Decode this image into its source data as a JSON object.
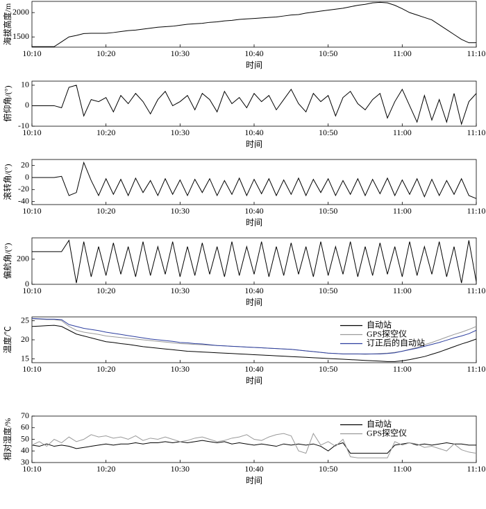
{
  "chart_data": [
    {
      "type": "line",
      "ylabel": "海拔高度/m",
      "xlabel": "时间",
      "x": [
        "10:10",
        "10:11",
        "10:12",
        "10:13",
        "10:14",
        "10:15",
        "10:16",
        "10:17",
        "10:18",
        "10:19",
        "10:20",
        "10:21",
        "10:22",
        "10:23",
        "10:24",
        "10:25",
        "10:26",
        "10:27",
        "10:28",
        "10:29",
        "10:30",
        "10:31",
        "10:32",
        "10:33",
        "10:34",
        "10:35",
        "10:36",
        "10:37",
        "10:38",
        "10:39",
        "10:40",
        "10:41",
        "10:42",
        "10:43",
        "10:44",
        "10:45",
        "10:46",
        "10:47",
        "10:48",
        "10:49",
        "10:50",
        "10:51",
        "10:52",
        "10:53",
        "10:54",
        "10:55",
        "10:56",
        "10:57",
        "10:58",
        "10:59",
        "11:00",
        "11:01",
        "11:02",
        "11:03",
        "11:04",
        "11:05",
        "11:06",
        "11:07",
        "11:08",
        "11:09",
        "11:10"
      ],
      "values": [
        1300,
        1300,
        1300,
        1300,
        1400,
        1500,
        1530,
        1570,
        1575,
        1575,
        1575,
        1590,
        1610,
        1630,
        1640,
        1660,
        1680,
        1700,
        1710,
        1720,
        1740,
        1760,
        1770,
        1780,
        1800,
        1810,
        1830,
        1840,
        1860,
        1870,
        1880,
        1890,
        1900,
        1910,
        1930,
        1950,
        1960,
        1990,
        2010,
        2030,
        2050,
        2070,
        2090,
        2120,
        2150,
        2170,
        2200,
        2210,
        2200,
        2150,
        2080,
        2000,
        1950,
        1900,
        1850,
        1750,
        1650,
        1550,
        1450,
        1380,
        1380
      ],
      "color": "#000000",
      "xlim": [
        "10:10",
        "11:10"
      ],
      "xticks": [
        "10:10",
        "10:20",
        "10:30",
        "10:40",
        "10:50",
        "11:00",
        "11:10"
      ],
      "ylim": [
        1290,
        2230
      ],
      "yticks": [
        1500,
        2000
      ]
    },
    {
      "type": "line",
      "ylabel": "俯仰角/(°)",
      "xlabel": "时间",
      "x": [
        "10:10",
        "10:11",
        "10:12",
        "10:13",
        "10:14",
        "10:15",
        "10:16",
        "10:17",
        "10:18",
        "10:19",
        "10:20",
        "10:21",
        "10:22",
        "10:23",
        "10:24",
        "10:25",
        "10:26",
        "10:27",
        "10:28",
        "10:29",
        "10:30",
        "10:31",
        "10:32",
        "10:33",
        "10:34",
        "10:35",
        "10:36",
        "10:37",
        "10:38",
        "10:39",
        "10:40",
        "10:41",
        "10:42",
        "10:43",
        "10:44",
        "10:45",
        "10:46",
        "10:47",
        "10:48",
        "10:49",
        "10:50",
        "10:51",
        "10:52",
        "10:53",
        "10:54",
        "10:55",
        "10:56",
        "10:57",
        "10:58",
        "10:59",
        "11:00",
        "11:01",
        "11:02",
        "11:03",
        "11:04",
        "11:05",
        "11:06",
        "11:07",
        "11:08",
        "11:09",
        "11:10"
      ],
      "values": [
        0,
        0,
        0,
        0,
        -1,
        9,
        10,
        -5,
        3,
        2,
        4,
        -3,
        5,
        1,
        6,
        2,
        -4,
        3,
        7,
        0,
        2,
        5,
        -2,
        6,
        3,
        -3,
        7,
        1,
        4,
        -1,
        6,
        2,
        5,
        -2,
        3,
        8,
        1,
        -3,
        6,
        2,
        5,
        -5,
        4,
        7,
        1,
        -2,
        3,
        6,
        -6,
        2,
        8,
        0,
        -8,
        5,
        -7,
        3,
        -8,
        6,
        -9,
        2,
        6
      ],
      "color": "#000000",
      "xlim": [
        "10:10",
        "11:10"
      ],
      "xticks": [
        "10:10",
        "10:20",
        "10:30",
        "10:40",
        "10:50",
        "11:00",
        "11:10"
      ],
      "ylim": [
        -10,
        12
      ],
      "yticks": [
        -10,
        0,
        10
      ]
    },
    {
      "type": "line",
      "ylabel": "滚转角/(°)",
      "xlabel": "时间",
      "x": [
        "10:10",
        "10:11",
        "10:12",
        "10:13",
        "10:14",
        "10:15",
        "10:16",
        "10:17",
        "10:18",
        "10:19",
        "10:20",
        "10:21",
        "10:22",
        "10:23",
        "10:24",
        "10:25",
        "10:26",
        "10:27",
        "10:28",
        "10:29",
        "10:30",
        "10:31",
        "10:32",
        "10:33",
        "10:34",
        "10:35",
        "10:36",
        "10:37",
        "10:38",
        "10:39",
        "10:40",
        "10:41",
        "10:42",
        "10:43",
        "10:44",
        "10:45",
        "10:46",
        "10:47",
        "10:48",
        "10:49",
        "10:50",
        "10:51",
        "10:52",
        "10:53",
        "10:54",
        "10:55",
        "10:56",
        "10:57",
        "10:58",
        "10:59",
        "11:00",
        "11:01",
        "11:02",
        "11:03",
        "11:04",
        "11:05",
        "11:06",
        "11:07",
        "11:08",
        "11:09",
        "11:10"
      ],
      "values": [
        0,
        0,
        0,
        0,
        2,
        -30,
        -25,
        25,
        -5,
        -30,
        -2,
        -28,
        -3,
        -30,
        -1,
        -25,
        -5,
        -30,
        -2,
        -28,
        -4,
        -30,
        -3,
        -25,
        -2,
        -30,
        -5,
        -28,
        -1,
        -30,
        -3,
        -27,
        -2,
        -30,
        -4,
        -28,
        -1,
        -30,
        -3,
        -25,
        -2,
        -30,
        -5,
        -28,
        -2,
        -30,
        -3,
        -27,
        -1,
        -30,
        -4,
        -28,
        -2,
        -32,
        -3,
        -30,
        -5,
        -28,
        -2,
        -30,
        -35
      ],
      "color": "#000000",
      "xlim": [
        "10:10",
        "11:10"
      ],
      "xticks": [
        "10:10",
        "10:20",
        "10:30",
        "10:40",
        "10:50",
        "11:00",
        "11:10"
      ],
      "ylim": [
        -45,
        30
      ],
      "yticks": [
        -40,
        -20,
        0,
        20
      ]
    },
    {
      "type": "line",
      "ylabel": "偏航角/(°)",
      "xlabel": "时间",
      "x": [
        "10:10",
        "10:11",
        "10:12",
        "10:13",
        "10:14",
        "10:15",
        "10:16",
        "10:17",
        "10:18",
        "10:19",
        "10:20",
        "10:21",
        "10:22",
        "10:23",
        "10:24",
        "10:25",
        "10:26",
        "10:27",
        "10:28",
        "10:29",
        "10:30",
        "10:31",
        "10:32",
        "10:33",
        "10:34",
        "10:35",
        "10:36",
        "10:37",
        "10:38",
        "10:39",
        "10:40",
        "10:41",
        "10:42",
        "10:43",
        "10:44",
        "10:45",
        "10:46",
        "10:47",
        "10:48",
        "10:49",
        "10:50",
        "10:51",
        "10:52",
        "10:53",
        "10:54",
        "10:55",
        "10:56",
        "10:57",
        "10:58",
        "10:59",
        "11:00",
        "11:01",
        "11:02",
        "11:03",
        "11:04",
        "11:05",
        "11:06",
        "11:07",
        "11:08",
        "11:09",
        "11:10"
      ],
      "values": [
        260,
        260,
        260,
        260,
        260,
        350,
        10,
        340,
        60,
        300,
        70,
        330,
        80,
        300,
        60,
        340,
        70,
        300,
        80,
        340,
        60,
        300,
        70,
        330,
        80,
        300,
        60,
        340,
        70,
        300,
        80,
        340,
        60,
        300,
        70,
        330,
        80,
        300,
        60,
        340,
        70,
        300,
        80,
        340,
        60,
        300,
        70,
        330,
        80,
        300,
        60,
        340,
        70,
        300,
        80,
        340,
        60,
        300,
        10,
        350,
        20
      ],
      "color": "#000000",
      "xlim": [
        "10:10",
        "11:10"
      ],
      "xticks": [
        "10:10",
        "10:20",
        "10:30",
        "10:40",
        "10:50",
        "11:00",
        "11:10"
      ],
      "ylim": [
        0,
        370
      ],
      "yticks": [
        0,
        200
      ]
    },
    {
      "type": "line",
      "ylabel": "温度/℃",
      "xlabel": "时间",
      "legend": "upper right",
      "x": [
        "10:10",
        "10:11",
        "10:12",
        "10:13",
        "10:14",
        "10:15",
        "10:16",
        "10:17",
        "10:18",
        "10:19",
        "10:20",
        "10:21",
        "10:22",
        "10:23",
        "10:24",
        "10:25",
        "10:26",
        "10:27",
        "10:28",
        "10:29",
        "10:30",
        "10:31",
        "10:32",
        "10:33",
        "10:34",
        "10:35",
        "10:36",
        "10:37",
        "10:38",
        "10:39",
        "10:40",
        "10:41",
        "10:42",
        "10:43",
        "10:44",
        "10:45",
        "10:46",
        "10:47",
        "10:48",
        "10:49",
        "10:50",
        "10:51",
        "10:52",
        "10:53",
        "10:54",
        "10:55",
        "10:56",
        "10:57",
        "10:58",
        "10:59",
        "11:00",
        "11:01",
        "11:02",
        "11:03",
        "11:04",
        "11:05",
        "11:06",
        "11:07",
        "11:08",
        "11:09",
        "11:10"
      ],
      "series": [
        {
          "name": "自动站",
          "color": "#000000",
          "values": [
            23.5,
            23.6,
            23.7,
            23.8,
            23.5,
            22.5,
            21.5,
            21,
            20.5,
            20,
            19.5,
            19.3,
            19,
            18.8,
            18.5,
            18.2,
            18,
            17.8,
            17.6,
            17.4,
            17.2,
            17,
            16.9,
            16.8,
            16.7,
            16.6,
            16.5,
            16.4,
            16.3,
            16.2,
            16.1,
            16,
            15.9,
            15.8,
            15.7,
            15.6,
            15.5,
            15.4,
            15.3,
            15.2,
            15.1,
            15,
            14.9,
            14.8,
            14.7,
            14.6,
            14.5,
            14.4,
            14.3,
            14.3,
            14.5,
            14.8,
            15.2,
            15.6,
            16.2,
            16.8,
            17.5,
            18.2,
            18.9,
            19.5,
            20.2
          ]
        },
        {
          "name": "GPS探空仪",
          "color": "#999999",
          "values": [
            25.5,
            25.4,
            25.3,
            25.3,
            25,
            23.5,
            22.5,
            22,
            21.7,
            21.4,
            21,
            20.8,
            20.6,
            20.4,
            20.2,
            20,
            19.8,
            19.6,
            19.4,
            19.2,
            19,
            18.9,
            18.8,
            18.7,
            18.6,
            18.5,
            18.4,
            18.3,
            18.2,
            18.1,
            18,
            17.9,
            17.8,
            17.7,
            17.6,
            17.5,
            17.3,
            17.1,
            16.9,
            16.7,
            16.5,
            16.4,
            16.3,
            16.3,
            16.3,
            16.2,
            16.3,
            16.4,
            16.5,
            16.7,
            17,
            17.5,
            18,
            18.7,
            19.3,
            20,
            20.7,
            21.4,
            22,
            22.7,
            23.5
          ]
        },
        {
          "name": "订正后的自动站",
          "color": "#2b3d9e",
          "values": [
            25.6,
            25.5,
            25.4,
            25.4,
            25.3,
            24,
            23.5,
            23,
            22.7,
            22.4,
            22,
            21.7,
            21.4,
            21.1,
            20.8,
            20.5,
            20.2,
            20,
            19.8,
            19.6,
            19.3,
            19.2,
            19,
            18.9,
            18.7,
            18.5,
            18.4,
            18.3,
            18.2,
            18.1,
            18,
            17.9,
            17.8,
            17.7,
            17.6,
            17.5,
            17.3,
            17.1,
            16.9,
            16.7,
            16.5,
            16.4,
            16.3,
            16.3,
            16.3,
            16.3,
            16.3,
            16.3,
            16.4,
            16.6,
            17,
            17.4,
            17.8,
            18.3,
            18.8,
            19.3,
            19.9,
            20.5,
            21,
            21.6,
            22.5
          ]
        }
      ],
      "xlim": [
        "10:10",
        "11:10"
      ],
      "xticks": [
        "10:10",
        "10:20",
        "10:30",
        "10:40",
        "10:50",
        "11:00",
        "11:10"
      ],
      "ylim": [
        14,
        26
      ],
      "yticks": [
        15,
        20,
        25
      ]
    },
    {
      "type": "line",
      "ylabel": "相对湿度/%",
      "xlabel": "时间",
      "legend": "upper right",
      "x": [
        "10:10",
        "10:11",
        "10:12",
        "10:13",
        "10:14",
        "10:15",
        "10:16",
        "10:17",
        "10:18",
        "10:19",
        "10:20",
        "10:21",
        "10:22",
        "10:23",
        "10:24",
        "10:25",
        "10:26",
        "10:27",
        "10:28",
        "10:29",
        "10:30",
        "10:31",
        "10:32",
        "10:33",
        "10:34",
        "10:35",
        "10:36",
        "10:37",
        "10:38",
        "10:39",
        "10:40",
        "10:41",
        "10:42",
        "10:43",
        "10:44",
        "10:45",
        "10:46",
        "10:47",
        "10:48",
        "10:49",
        "10:50",
        "10:51",
        "10:52",
        "10:53",
        "10:54",
        "10:55",
        "10:56",
        "10:57",
        "10:58",
        "10:59",
        "11:00",
        "11:01",
        "11:02",
        "11:03",
        "11:04",
        "11:05",
        "11:06",
        "11:07",
        "11:08",
        "11:09",
        "11:10"
      ],
      "series": [
        {
          "name": "自动站",
          "color": "#000000",
          "values": [
            45,
            44,
            46,
            44,
            45,
            44,
            42,
            43,
            44,
            45,
            46,
            45,
            46,
            46,
            47,
            46,
            47,
            47,
            48,
            47,
            48,
            47,
            48,
            49,
            48,
            47,
            48,
            46,
            47,
            46,
            45,
            46,
            45,
            44,
            46,
            45,
            46,
            45,
            46,
            44,
            40,
            45,
            47,
            38,
            38,
            38,
            38,
            38,
            38,
            45,
            46,
            47,
            45,
            46,
            45,
            46,
            47,
            46,
            46,
            45,
            45
          ]
        },
        {
          "name": "GPS探空仪",
          "color": "#999999",
          "values": [
            45,
            48,
            44,
            50,
            47,
            52,
            48,
            50,
            54,
            52,
            53,
            51,
            52,
            50,
            53,
            49,
            51,
            50,
            52,
            50,
            48,
            49,
            51,
            52,
            50,
            48,
            49,
            51,
            52,
            54,
            50,
            49,
            52,
            54,
            55,
            53,
            40,
            38,
            55,
            45,
            48,
            44,
            50,
            35,
            34,
            34,
            34,
            34,
            34,
            48,
            45,
            47,
            46,
            43,
            44,
            42,
            40,
            46,
            41,
            39,
            38
          ]
        }
      ],
      "xlim": [
        "10:10",
        "11:10"
      ],
      "xticks": [
        "10:10",
        "10:20",
        "10:30",
        "10:40",
        "10:50",
        "11:00",
        "11:10"
      ],
      "ylim": [
        30,
        70
      ],
      "yticks": [
        30,
        40,
        50,
        60,
        70
      ]
    }
  ]
}
